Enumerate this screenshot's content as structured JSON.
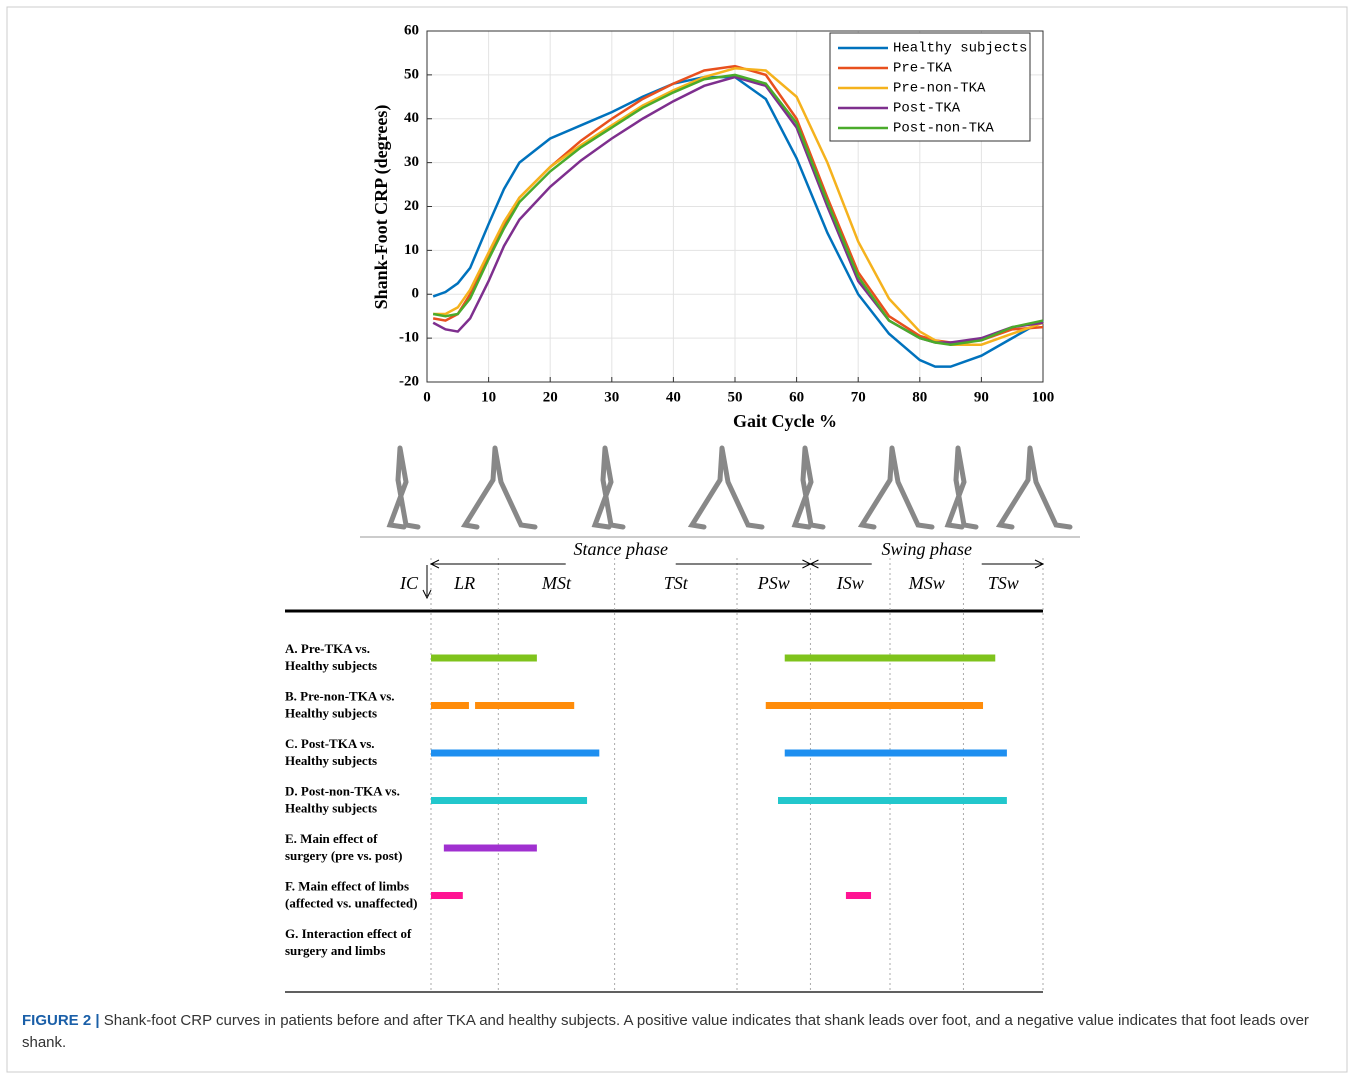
{
  "chart_data": {
    "type": "line",
    "xlabel": "Gait Cycle %",
    "ylabel": "Shank-Foot CRP (degrees)",
    "x": [
      1,
      3,
      5,
      7,
      10,
      12.5,
      15,
      20,
      25,
      30,
      35,
      40,
      45,
      50,
      55,
      60,
      65,
      70,
      75,
      80,
      82.5,
      85,
      90,
      95,
      100
    ],
    "series": [
      {
        "name": "Healthy subjects",
        "color": "#0072bd",
        "values": [
          -0.5,
          0.5,
          2.5,
          6,
          16,
          24,
          30,
          35.5,
          38.5,
          41.5,
          45,
          48,
          49.5,
          49.5,
          44.5,
          31,
          14,
          0,
          -9,
          -15,
          -16.5,
          -16.5,
          -14,
          -10,
          -6
        ]
      },
      {
        "name": "Pre-TKA",
        "color": "#e8501e",
        "values": [
          -5.5,
          -6,
          -4.5,
          0,
          9,
          16,
          22,
          29,
          35,
          40,
          44.5,
          48,
          51,
          52,
          50,
          40,
          22,
          5,
          -5,
          -9.5,
          -10.5,
          -11,
          -10.5,
          -8,
          -7.5
        ]
      },
      {
        "name": "Pre-non-TKA",
        "color": "#f5b21d",
        "values": [
          -4.5,
          -4.5,
          -3,
          1,
          9.5,
          16.5,
          22,
          29,
          34,
          38.5,
          43,
          46.5,
          49.5,
          51.5,
          51,
          45,
          30,
          12,
          -1,
          -8.5,
          -10.5,
          -11.5,
          -11.5,
          -9,
          -6.5
        ]
      },
      {
        "name": "Post-TKA",
        "color": "#7e2f8e",
        "values": [
          -6.5,
          -8,
          -8.5,
          -5.5,
          3,
          11,
          17,
          24.5,
          30.5,
          35.5,
          40,
          44,
          47.5,
          49.5,
          47.5,
          38,
          20,
          3,
          -6,
          -10,
          -11,
          -11,
          -10,
          -7.5,
          -6.5
        ]
      },
      {
        "name": "Post-non-TKA",
        "color": "#4aab2b",
        "values": [
          -4.5,
          -5,
          -4.5,
          -1,
          8,
          15,
          21,
          28,
          33.5,
          38,
          42.5,
          46,
          49,
          50,
          48,
          39,
          21,
          4,
          -6,
          -10,
          -11,
          -11.5,
          -10.5,
          -7.5,
          -6
        ]
      }
    ],
    "xlim": [
      0,
      100
    ],
    "ylim": [
      -20,
      60
    ],
    "xticks": [
      0,
      10,
      20,
      30,
      40,
      50,
      60,
      70,
      80,
      90,
      100
    ],
    "yticks": [
      -20,
      -10,
      0,
      10,
      20,
      30,
      40,
      50,
      60
    ],
    "grid": true,
    "legend": "upper right"
  },
  "phase_diagram": {
    "stance_label": "Stance phase",
    "swing_label": "Swing phase",
    "phases": [
      "IC",
      "LR",
      "MSt",
      "TSt",
      "PSw",
      "ISw",
      "MSw",
      "TSw"
    ],
    "boundaries": [
      0,
      11,
      30,
      50,
      62,
      75,
      87,
      100
    ],
    "rows": [
      {
        "label": [
          "A. Pre-TKA vs.",
          "Healthy subjects"
        ],
        "color": "#7fc31c",
        "segments": [
          [
            0,
            17.3
          ],
          [
            57.8,
            92.2
          ]
        ]
      },
      {
        "label": [
          "B. Pre-non-TKA vs.",
          "Healthy subjects"
        ],
        "color": "#ff8c0a",
        "segments": [
          [
            0,
            6.2
          ],
          [
            7.2,
            23.4
          ],
          [
            54.7,
            90.2
          ]
        ]
      },
      {
        "label": [
          "C. Post-TKA vs.",
          "Healthy subjects"
        ],
        "color": "#1e8ff0",
        "segments": [
          [
            0,
            27.5
          ],
          [
            57.8,
            94.1
          ]
        ]
      },
      {
        "label": [
          "D. Post-non-TKA vs.",
          "Healthy subjects"
        ],
        "color": "#22c7cc",
        "segments": [
          [
            0,
            25.5
          ],
          [
            56.7,
            94.1
          ]
        ]
      },
      {
        "label": [
          "E. Main effect of",
          "surgery (pre vs. post)"
        ],
        "color": "#a030d0",
        "segments": [
          [
            2.1,
            17.3
          ]
        ]
      },
      {
        "label": [
          "F. Main effect of limbs",
          "(affected vs. unaffected)"
        ],
        "color": "#ff1493",
        "segments": [
          [
            0,
            5.2
          ],
          [
            67.8,
            71.9
          ]
        ]
      },
      {
        "label": [
          "G. Interaction effect of",
          "surgery and limbs"
        ],
        "color": "#888888",
        "segments": []
      }
    ]
  },
  "caption": {
    "label": "FIGURE 2 |",
    "text": "Shank-foot CRP curves in patients before and after TKA and healthy subjects. A positive value indicates that shank leads over foot, and a negative value indicates that foot leads over shank."
  }
}
